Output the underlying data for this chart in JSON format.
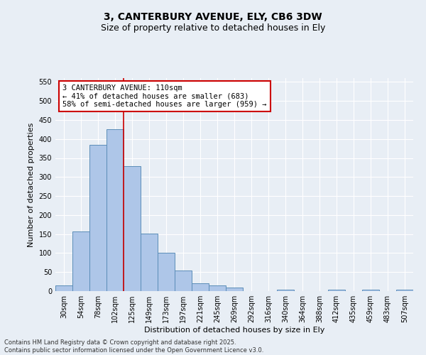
{
  "title1": "3, CANTERBURY AVENUE, ELY, CB6 3DW",
  "title2": "Size of property relative to detached houses in Ely",
  "xlabel": "Distribution of detached houses by size in Ely",
  "ylabel": "Number of detached properties",
  "categories": [
    "30sqm",
    "54sqm",
    "78sqm",
    "102sqm",
    "125sqm",
    "149sqm",
    "173sqm",
    "197sqm",
    "221sqm",
    "245sqm",
    "269sqm",
    "292sqm",
    "316sqm",
    "340sqm",
    "364sqm",
    "388sqm",
    "412sqm",
    "435sqm",
    "459sqm",
    "483sqm",
    "507sqm"
  ],
  "values": [
    15,
    157,
    385,
    425,
    328,
    152,
    101,
    55,
    20,
    15,
    9,
    0,
    0,
    4,
    0,
    0,
    4,
    0,
    3,
    0,
    3
  ],
  "bar_color": "#aec6e8",
  "bar_edge_color": "#5b8db8",
  "vline_color": "#cc0000",
  "vline_x": 3.5,
  "annotation_text": "3 CANTERBURY AVENUE: 110sqm\n← 41% of detached houses are smaller (683)\n58% of semi-detached houses are larger (959) →",
  "annotation_box_color": "#ffffff",
  "annotation_box_edge_color": "#cc0000",
  "ylim": [
    0,
    560
  ],
  "yticks": [
    0,
    50,
    100,
    150,
    200,
    250,
    300,
    350,
    400,
    450,
    500,
    550
  ],
  "bg_color": "#e8eef5",
  "grid_color": "#ffffff",
  "footer_text": "Contains HM Land Registry data © Crown copyright and database right 2025.\nContains public sector information licensed under the Open Government Licence v3.0.",
  "title_fontsize": 10,
  "subtitle_fontsize": 9,
  "axis_label_fontsize": 8,
  "tick_fontsize": 7,
  "annotation_fontsize": 7.5,
  "footer_fontsize": 6
}
